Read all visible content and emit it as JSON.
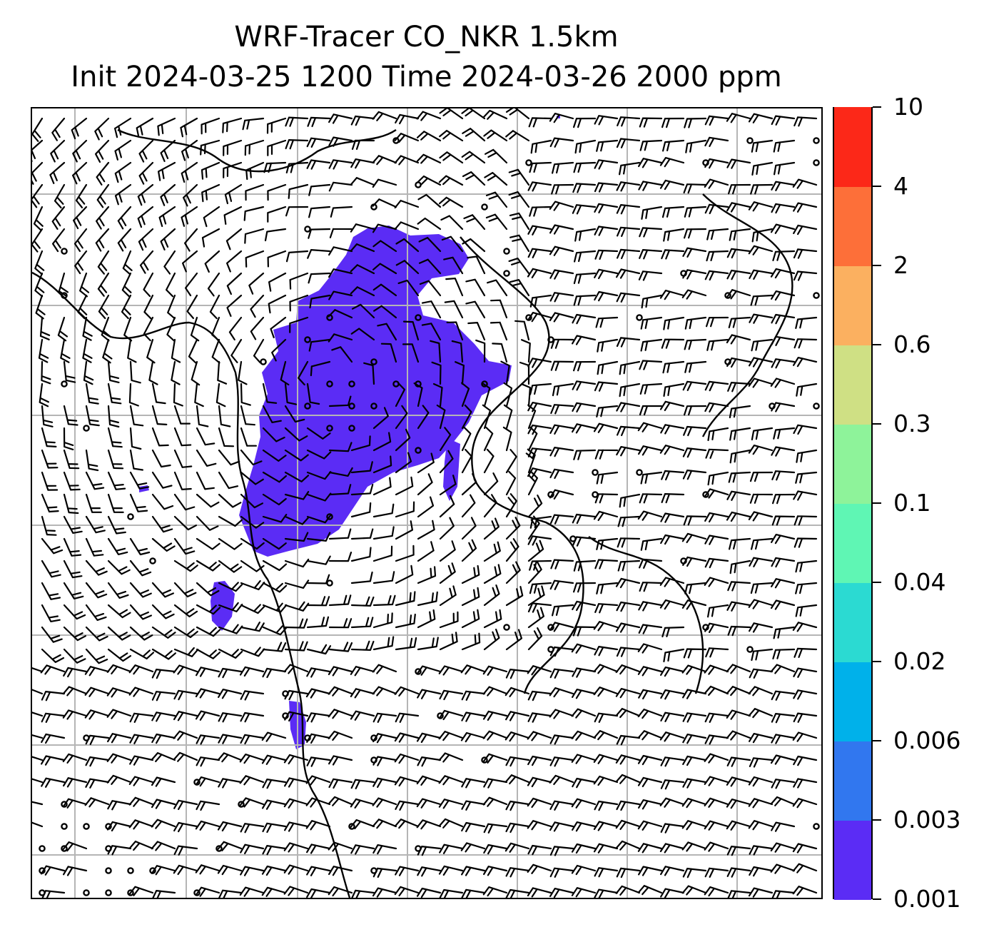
{
  "title": {
    "line1": "WRF-Tracer CO_NKR 1.5km",
    "line2": "Init 2024-03-25 1200 Time 2024-03-26 2000 ppm"
  },
  "map": {
    "grid_lines": true,
    "features": [
      "coastline",
      "wind-barbs",
      "tracer-concentration-fill"
    ]
  },
  "colorbar": {
    "orientation": "vertical",
    "placement": "right",
    "ticks": [
      "0.001",
      "0.003",
      "0.006",
      "0.02",
      "0.04",
      "0.1",
      "0.3",
      "0.6",
      "2",
      "4",
      "10"
    ],
    "colors": [
      "#5b2cf5",
      "#3177ef",
      "#00b1ea",
      "#2bdad2",
      "#5ff6b4",
      "#8ef39a",
      "#cfe084",
      "#fbb060",
      "#fd6f39",
      "#fc2818"
    ]
  }
}
